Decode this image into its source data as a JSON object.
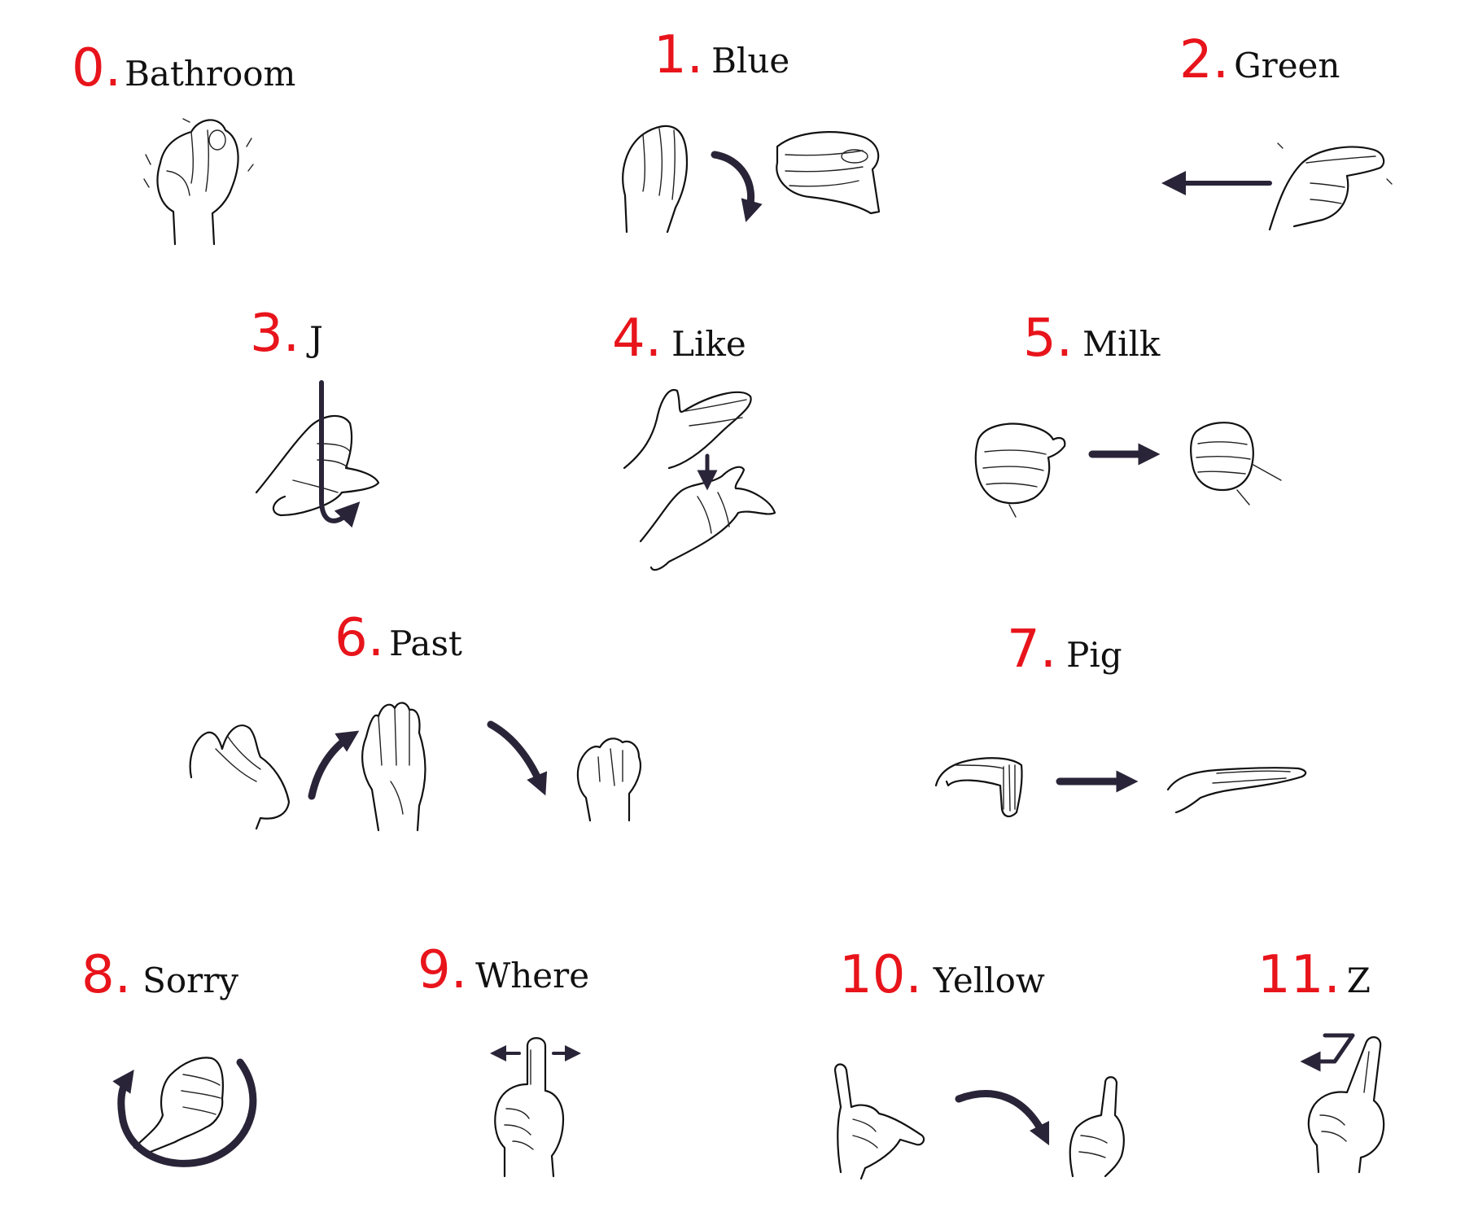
{
  "accent_color": "#e8141b",
  "arrow_color": "#2a2438",
  "signs": [
    {
      "number": "0.",
      "word": "Bathroom"
    },
    {
      "number": "1.",
      "word": "Blue"
    },
    {
      "number": "2.",
      "word": "Green"
    },
    {
      "number": "3.",
      "word": "J"
    },
    {
      "number": "4.",
      "word": "Like"
    },
    {
      "number": "5.",
      "word": "Milk"
    },
    {
      "number": "6.",
      "word": "Past"
    },
    {
      "number": "7.",
      "word": "Pig"
    },
    {
      "number": "8.",
      "word": "Sorry"
    },
    {
      "number": "9.",
      "word": "Where"
    },
    {
      "number": "10.",
      "word": "Yellow"
    },
    {
      "number": "11.",
      "word": "Z"
    }
  ]
}
